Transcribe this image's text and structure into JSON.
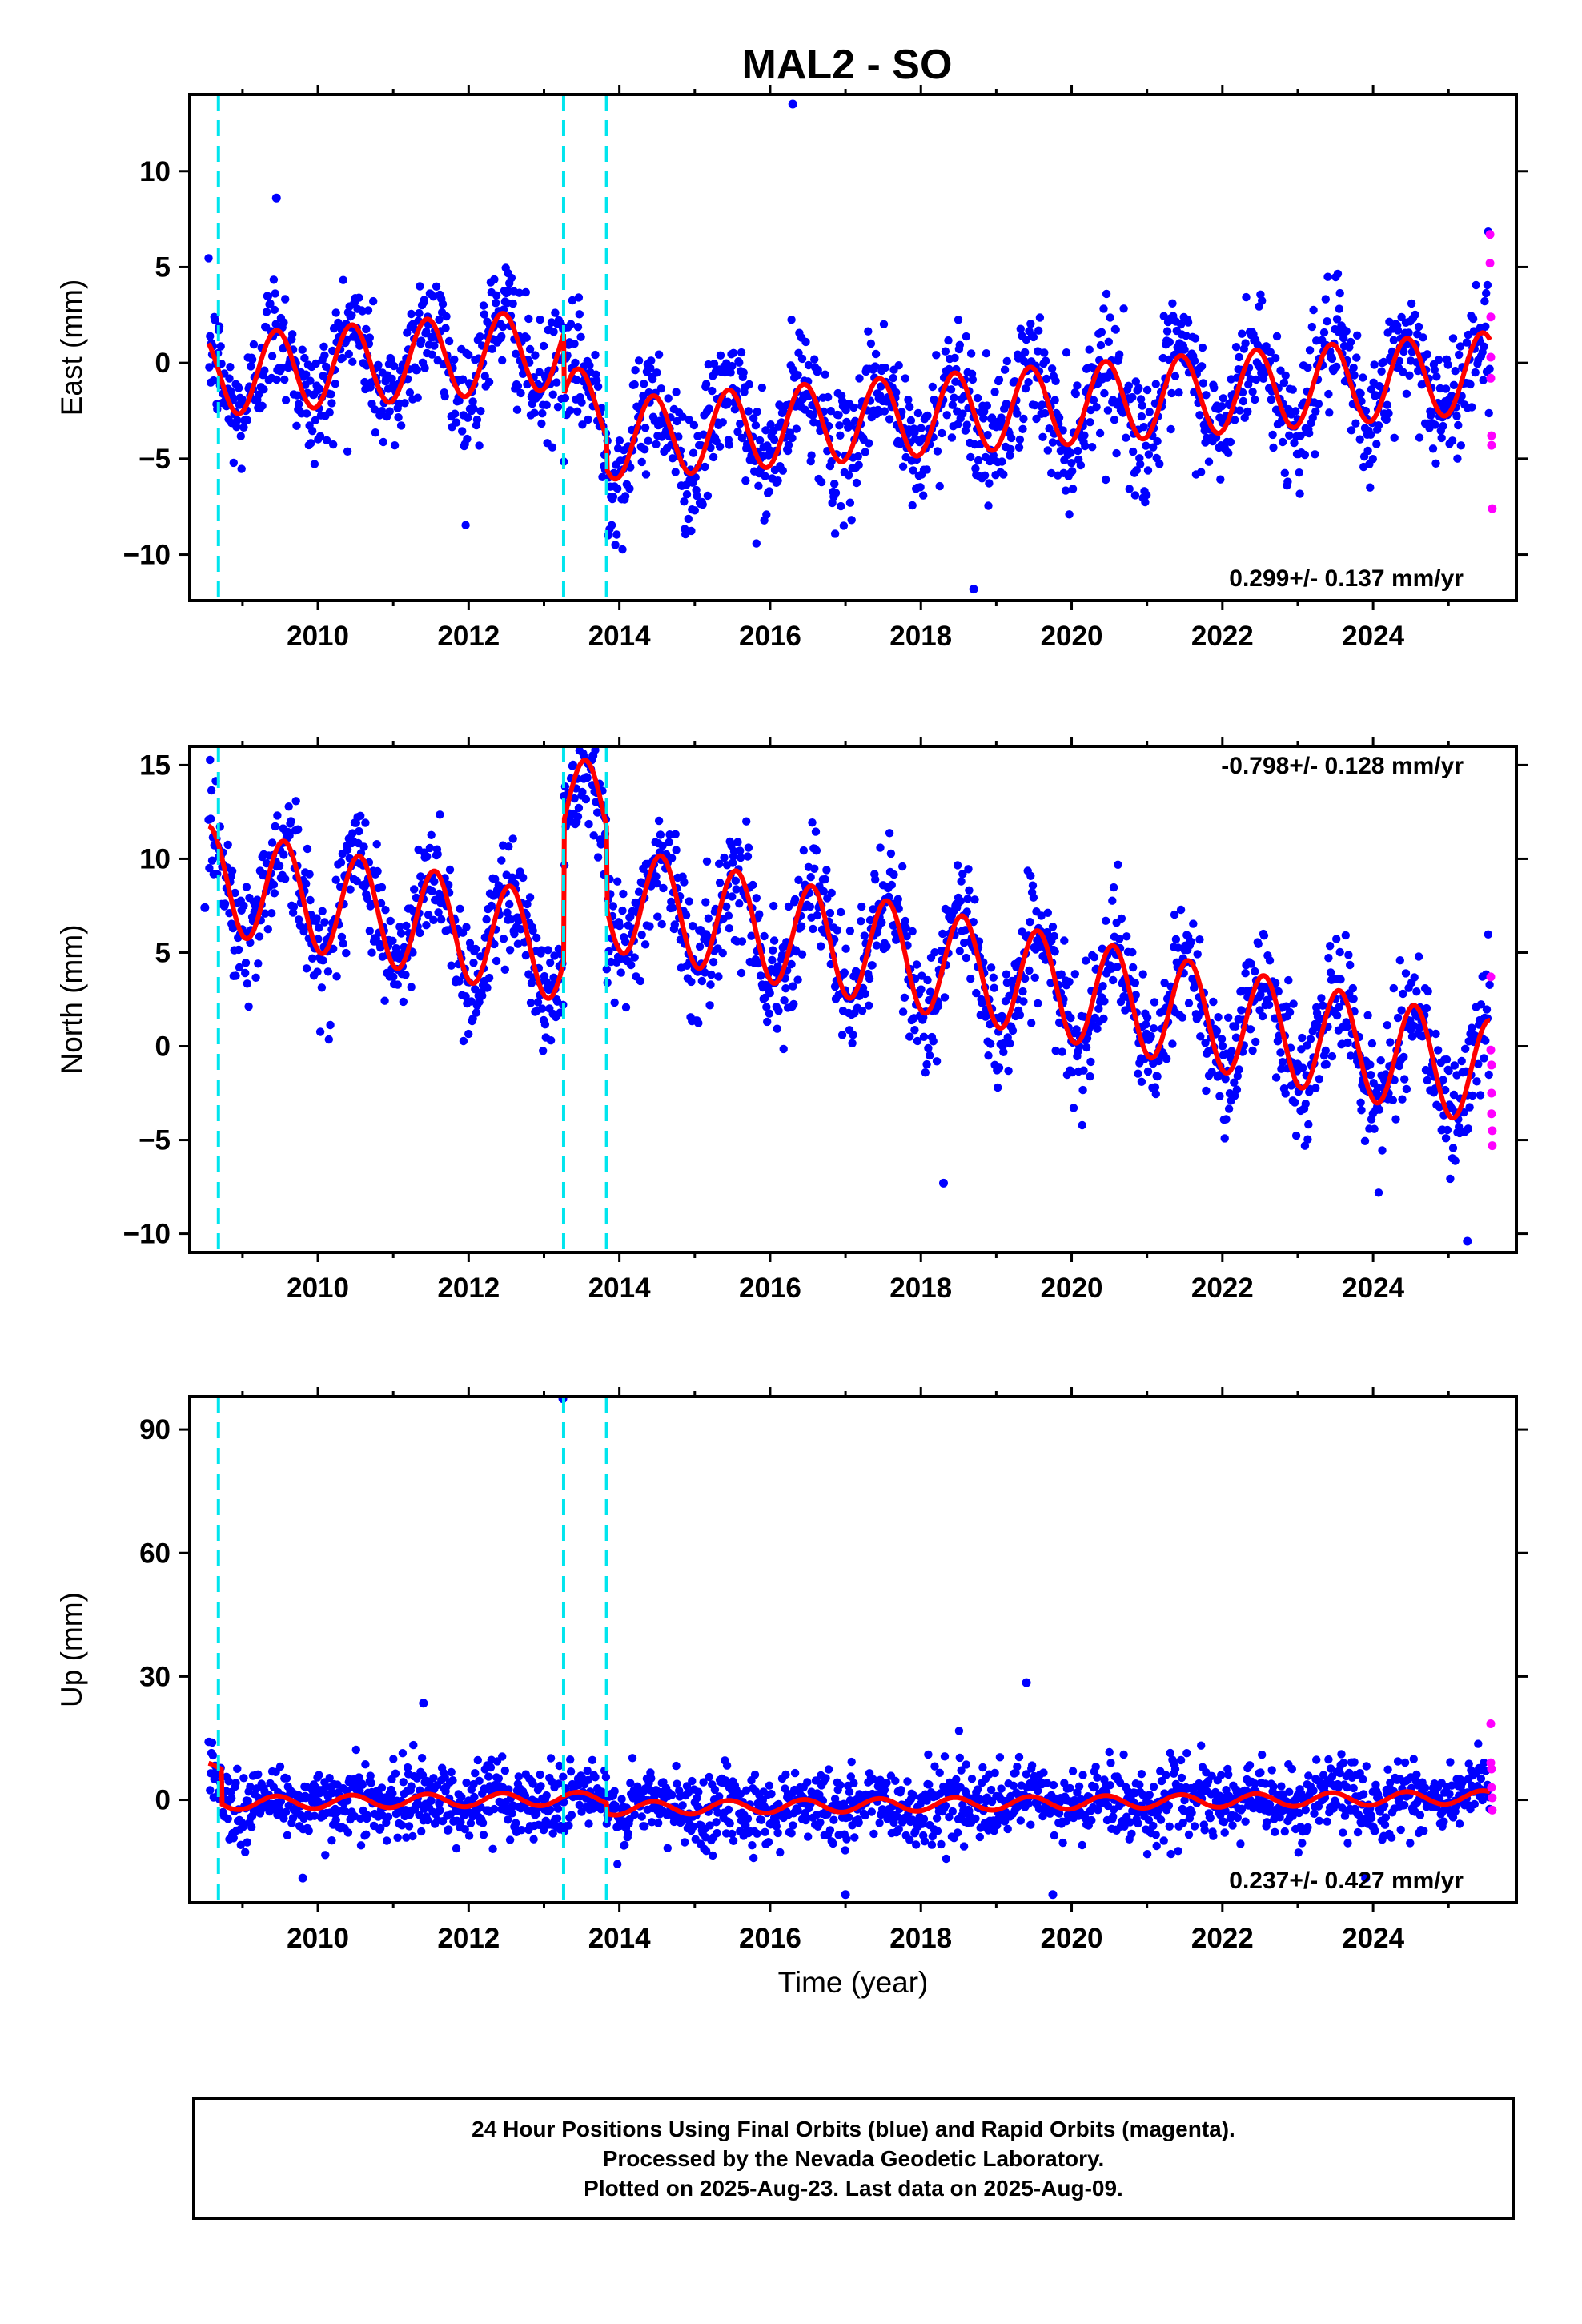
{
  "title": "MAL2 - SO",
  "colors": {
    "final_orbits": "#0000ff",
    "rapid_orbits": "#ff00ff",
    "model": "#ff0000",
    "steps": "#00e5ee",
    "frame": "#000000"
  },
  "chart_data": [
    {
      "type": "scatter",
      "panel": "east",
      "ylabel": "East (mm)",
      "xlabel": "",
      "xlim": [
        2008.3,
        2025.9
      ],
      "ylim": [
        -12.4,
        14
      ],
      "xticks": [
        2010,
        2012,
        2014,
        2016,
        2018,
        2020,
        2022,
        2024
      ],
      "yticks": [
        -10,
        -5,
        0,
        5,
        10
      ],
      "rate_label": "0.299+/- 0.137 mm/yr",
      "rate_position": "bottom-right",
      "step_lines": [
        2008.68,
        2013.26,
        2013.83
      ],
      "model": {
        "offset": -1.5,
        "rate": 0.299,
        "amplitude": 2.1,
        "phase_peak": 0.45,
        "segment_offsets": [
          3.2,
          0.0,
          -1.7
        ],
        "jumps": [
          2013.26,
          2013.83
        ]
      },
      "scatter_noise": 1.6,
      "outliers": [
        {
          "x": 2016.3,
          "y": 13.5
        },
        {
          "x": 2018.7,
          "y": -11.8
        },
        {
          "x": 2009.45,
          "y": 8.6
        }
      ],
      "rapid_points": [
        {
          "x": 2025.55,
          "y": 6.7
        },
        {
          "x": 2025.55,
          "y": 5.2
        },
        {
          "x": 2025.56,
          "y": 0.3
        },
        {
          "x": 2025.56,
          "y": -0.8
        },
        {
          "x": 2025.57,
          "y": -3.8
        },
        {
          "x": 2025.57,
          "y": -4.3
        },
        {
          "x": 2025.58,
          "y": -7.6
        },
        {
          "x": 2025.56,
          "y": 2.4
        }
      ]
    },
    {
      "type": "scatter",
      "panel": "north",
      "ylabel": "North (mm)",
      "xlabel": "",
      "xlim": [
        2008.3,
        2025.9
      ],
      "ylim": [
        -11,
        16
      ],
      "xticks": [
        2010,
        2012,
        2014,
        2016,
        2018,
        2020,
        2022,
        2024
      ],
      "yticks": [
        -10,
        -5,
        0,
        5,
        10,
        15
      ],
      "rate_label": "-0.798+/- 0.128 mm/yr",
      "rate_position": "top-right",
      "step_lines": [
        2008.68,
        2013.26,
        2013.83
      ],
      "model": {
        "offset": 2.6,
        "rate": -0.798,
        "amplitude": 2.8,
        "phase_peak": 0.55,
        "segment_offsets": [
          0.0,
          7.5,
          3.2
        ],
        "jumps": [
          2013.26,
          2013.83
        ]
      },
      "scatter_noise": 1.6,
      "outliers": [
        {
          "x": 2013.65,
          "y": 15.5
        },
        {
          "x": 2025.25,
          "y": -10.4
        },
        {
          "x": 2008.5,
          "y": 7.4
        },
        {
          "x": 2018.3,
          "y": -7.3
        }
      ],
      "rapid_points": [
        {
          "x": 2025.56,
          "y": 3.7
        },
        {
          "x": 2025.56,
          "y": -0.2
        },
        {
          "x": 2025.57,
          "y": -1.0
        },
        {
          "x": 2025.57,
          "y": -2.5
        },
        {
          "x": 2025.58,
          "y": -4.5
        },
        {
          "x": 2025.58,
          "y": -5.3
        },
        {
          "x": 2025.57,
          "y": -3.6
        }
      ]
    },
    {
      "type": "scatter",
      "panel": "up",
      "ylabel": "Up (mm)",
      "xlabel": "Time (year)",
      "xlim": [
        2008.3,
        2025.9
      ],
      "ylim": [
        -25,
        98
      ],
      "xticks": [
        2010,
        2012,
        2014,
        2016,
        2018,
        2020,
        2022,
        2024
      ],
      "yticks": [
        0,
        30,
        60,
        90
      ],
      "rate_label": "0.237+/- 0.427 mm/yr",
      "rate_position": "bottom-right",
      "step_lines": [
        2008.68,
        2013.26,
        2013.83
      ],
      "model": {
        "offset": 1.0,
        "rate": 0.237,
        "amplitude": 1.6,
        "phase_peak": 0.45,
        "segment_offsets": [
          0.0,
          0.0,
          -2.5
        ],
        "jumps": [
          2013.26,
          2013.83
        ],
        "initial_transient": 10.0
      },
      "scatter_noise": 4.5,
      "outliers": [
        {
          "x": 2013.25,
          "y": 97.5
        },
        {
          "x": 2019.4,
          "y": 28.5
        },
        {
          "x": 2011.4,
          "y": 23.5
        },
        {
          "x": 2017.0,
          "y": -23
        },
        {
          "x": 2019.75,
          "y": -23
        },
        {
          "x": 2009.8,
          "y": -19
        },
        {
          "x": 2023.9,
          "y": -19
        }
      ],
      "rapid_points": [
        {
          "x": 2025.56,
          "y": 18.5
        },
        {
          "x": 2025.56,
          "y": 9.0
        },
        {
          "x": 2025.57,
          "y": 7.5
        },
        {
          "x": 2025.57,
          "y": 3.0
        },
        {
          "x": 2025.58,
          "y": -2.5
        },
        {
          "x": 2025.58,
          "y": 0.5
        }
      ]
    }
  ],
  "caption": {
    "line1": "24 Hour Positions Using Final Orbits (blue) and Rapid Orbits (magenta).",
    "line2": "Processed by the Nevada Geodetic Laboratory.",
    "line3": "Plotted on 2025-Aug-23. Last data on 2025-Aug-09."
  }
}
